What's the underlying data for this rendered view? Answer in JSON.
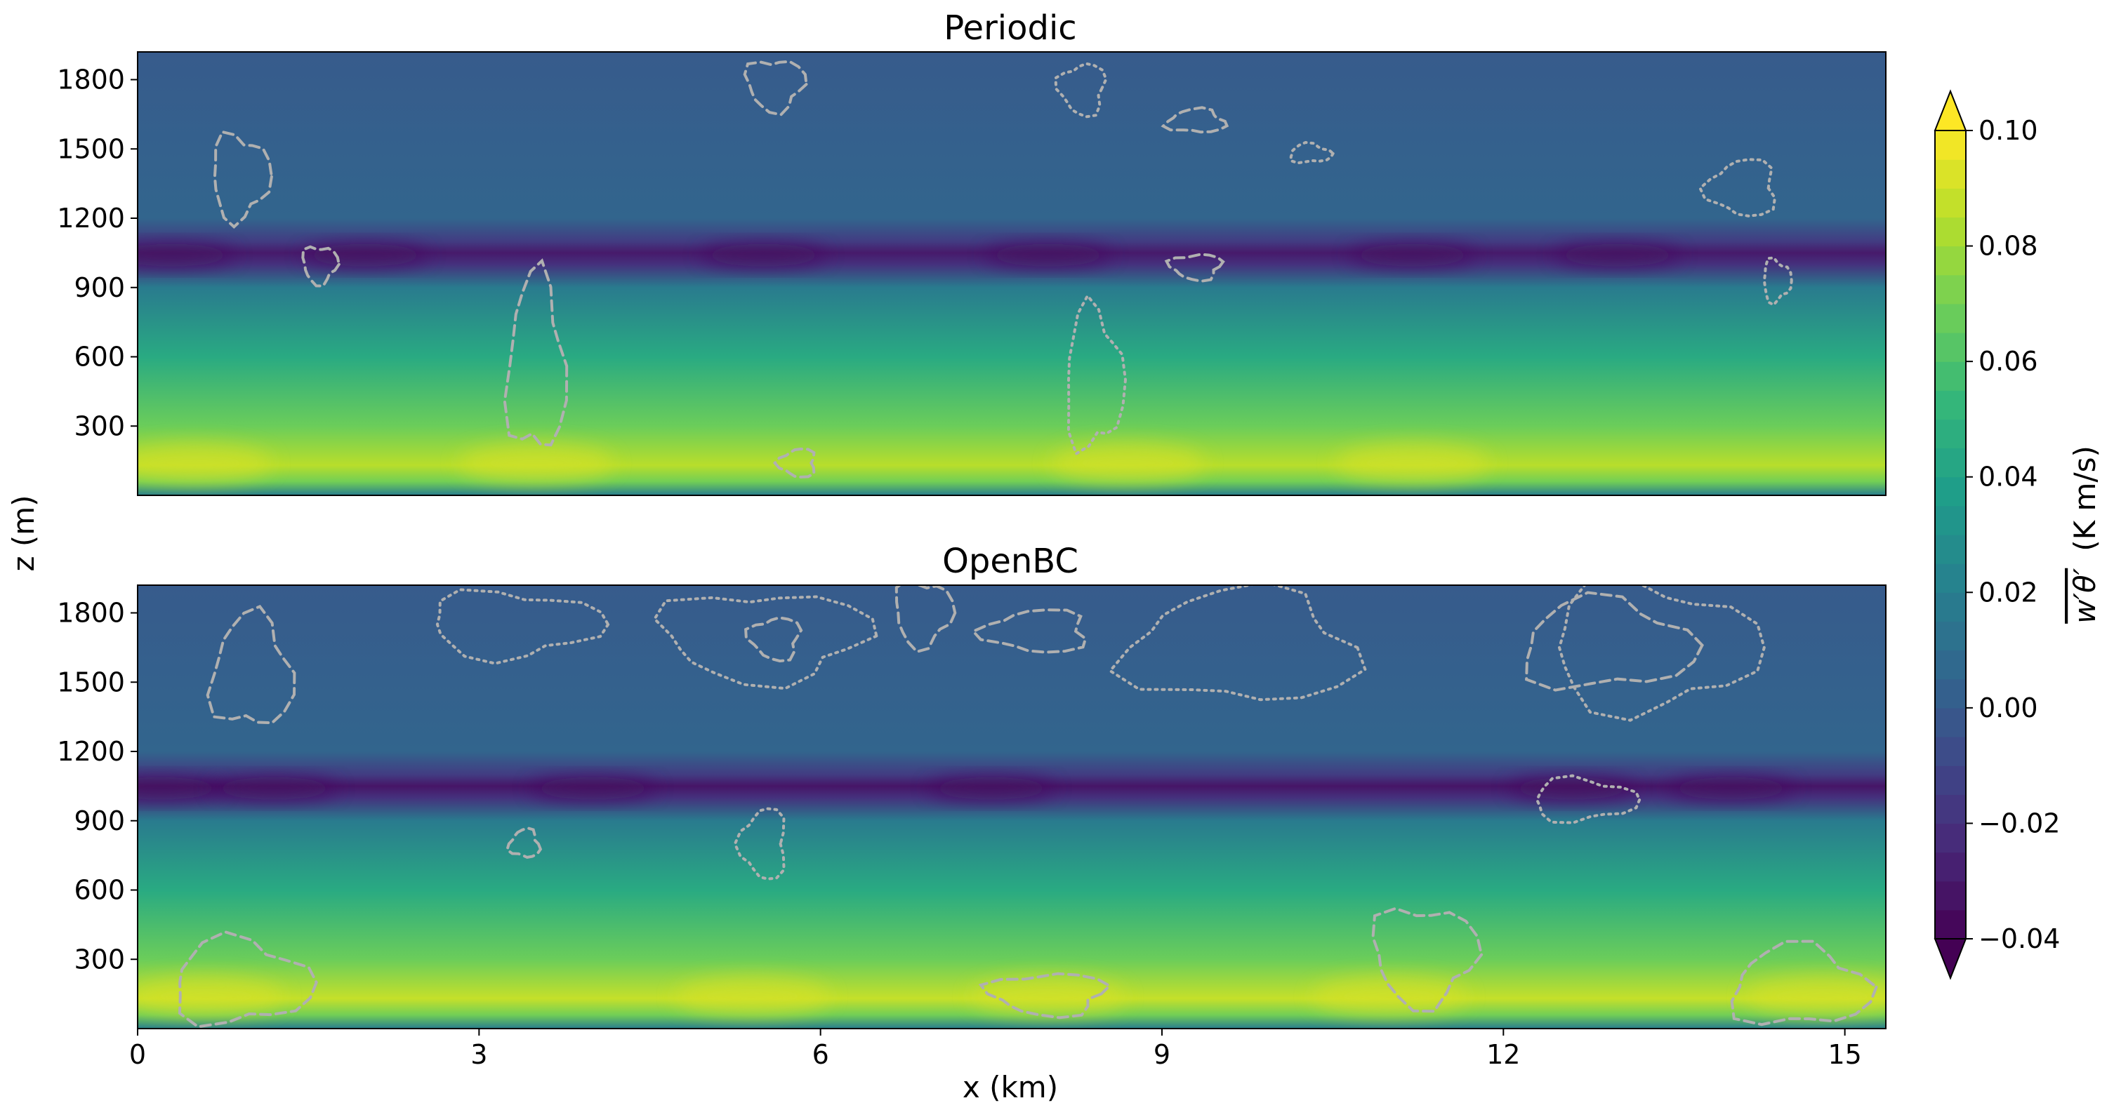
{
  "chart_data": [
    {
      "type": "heatmap",
      "title": "Periodic",
      "xlabel": "x (km)",
      "ylabel": "z (m)",
      "xlim": [
        0,
        15.36
      ],
      "ylim": [
        0,
        1920
      ],
      "xticks": [
        0,
        3,
        6,
        9,
        12,
        15
      ],
      "yticks": [
        300,
        600,
        900,
        1200,
        1500,
        1800
      ],
      "ytick_labels": [
        "300",
        "600",
        "900",
        "1200",
        "1500",
        "1800"
      ],
      "xtick_labels": [],
      "colormap": "viridis",
      "field": "w'θ' (K m/s)",
      "vertical_profile": [
        {
          "z": 0,
          "value": 0.02
        },
        {
          "z": 60,
          "value": 0.07
        },
        {
          "z": 130,
          "value": 0.085
        },
        {
          "z": 300,
          "value": 0.068
        },
        {
          "z": 600,
          "value": 0.045
        },
        {
          "z": 900,
          "value": 0.018
        },
        {
          "z": 1000,
          "value": -0.02
        },
        {
          "z": 1050,
          "value": -0.03
        },
        {
          "z": 1100,
          "value": -0.015
        },
        {
          "z": 1200,
          "value": 0.005
        },
        {
          "z": 1500,
          "value": 0.003
        },
        {
          "z": 1920,
          "value": 0.0
        }
      ],
      "contour_styles": [
        "dashed",
        "dotted"
      ],
      "contour_color": "#b0b0b0"
    },
    {
      "type": "heatmap",
      "title": "OpenBC",
      "xlabel": "x (km)",
      "ylabel": "z (m)",
      "xlim": [
        0,
        15.36
      ],
      "ylim": [
        0,
        1920
      ],
      "xticks": [
        0,
        3,
        6,
        9,
        12,
        15
      ],
      "yticks": [
        300,
        600,
        900,
        1200,
        1500,
        1800
      ],
      "ytick_labels": [
        "300",
        "600",
        "900",
        "1200",
        "1500",
        "1800"
      ],
      "xtick_labels": [
        "0",
        "3",
        "6",
        "9",
        "12",
        "15"
      ],
      "colormap": "viridis",
      "field": "w'θ' (K m/s)",
      "vertical_profile": [
        {
          "z": 0,
          "value": 0.02
        },
        {
          "z": 60,
          "value": 0.07
        },
        {
          "z": 130,
          "value": 0.088
        },
        {
          "z": 300,
          "value": 0.068
        },
        {
          "z": 600,
          "value": 0.045
        },
        {
          "z": 900,
          "value": 0.018
        },
        {
          "z": 1000,
          "value": -0.02
        },
        {
          "z": 1050,
          "value": -0.032
        },
        {
          "z": 1100,
          "value": -0.015
        },
        {
          "z": 1200,
          "value": 0.005
        },
        {
          "z": 1500,
          "value": 0.003
        },
        {
          "z": 1920,
          "value": 0.0
        }
      ],
      "contour_styles": [
        "dashed",
        "dotted"
      ],
      "contour_color": "#b0b0b0"
    }
  ],
  "colorbar": {
    "min": -0.04,
    "max": 0.1,
    "ticks": [
      -0.04,
      -0.02,
      0.0,
      0.02,
      0.04,
      0.06,
      0.08,
      0.1
    ],
    "tick_labels": [
      "−0.04",
      "−0.02",
      "0.00",
      "0.02",
      "0.04",
      "0.06",
      "0.08",
      "0.10"
    ],
    "label_symbol": "w′θ′",
    "label_units": "(K m/s)",
    "extend": "both",
    "levels": 28
  },
  "shared": {
    "ylabel": "z (m)",
    "xlabel": "x (km)"
  },
  "colors": {
    "viridis": [
      "#440154",
      "#482878",
      "#3e4989",
      "#31688e",
      "#26828e",
      "#1f9e89",
      "#35b779",
      "#6ece58",
      "#b5de2b",
      "#fde725"
    ]
  }
}
